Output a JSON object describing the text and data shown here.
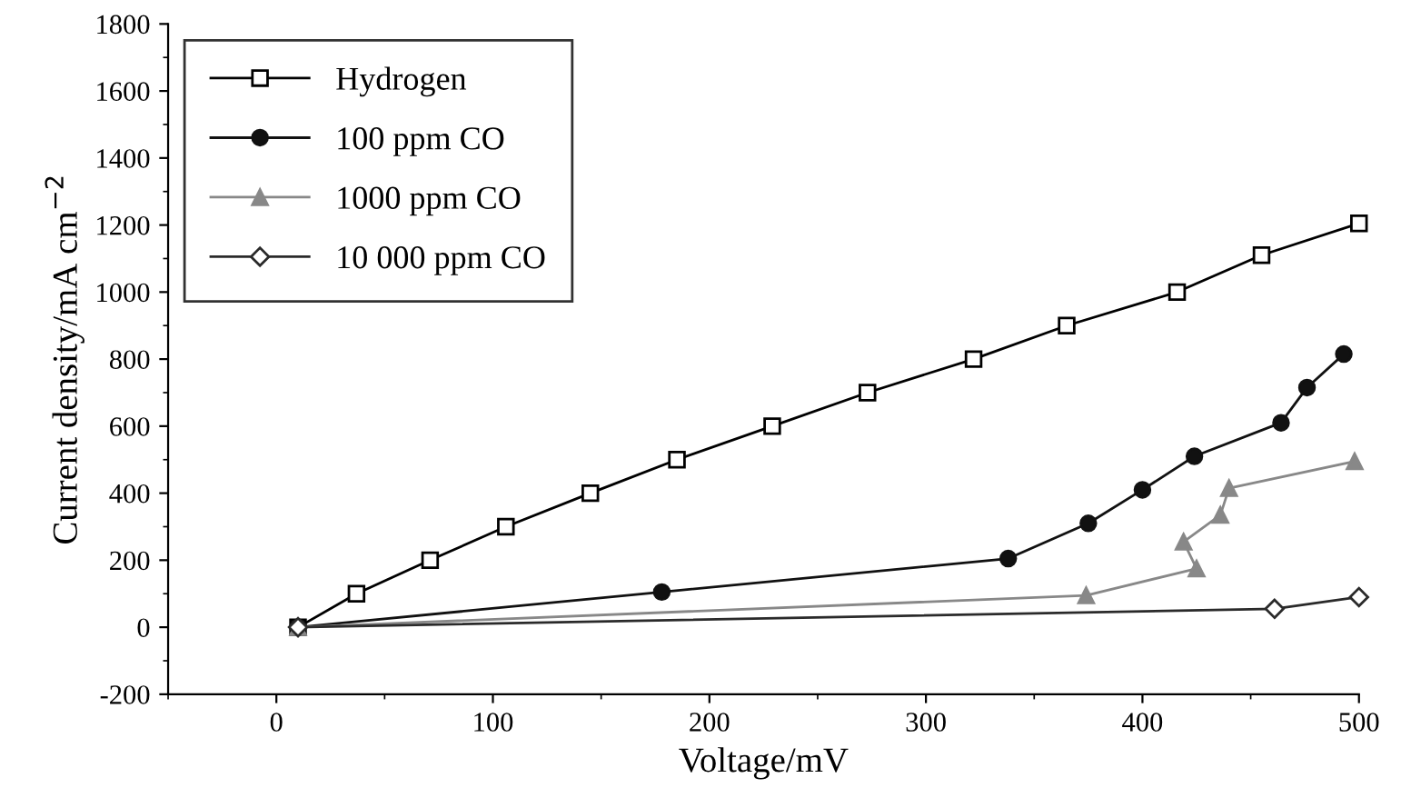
{
  "chart_data": {
    "type": "line",
    "xlabel": "Voltage/mV",
    "ylabel": "Current density/mA cm$^{−2}$",
    "xlim": [
      -50,
      500
    ],
    "xticks": [
      0,
      100,
      200,
      300,
      400,
      500
    ],
    "ylim": [
      -200,
      1800
    ],
    "yticks": [
      -200,
      0,
      200,
      400,
      600,
      800,
      1000,
      1200,
      1400,
      1600,
      1800
    ],
    "grid": false,
    "legend": "top left",
    "line_style": "solid",
    "series": [
      {
        "name": "Hydrogen",
        "color": "#000000",
        "marker": "square",
        "x": [
          10,
          37,
          71,
          106,
          145,
          185,
          229,
          273,
          322,
          365,
          416,
          455,
          500
        ],
        "values": [
          0,
          100,
          200,
          300,
          400,
          500,
          600,
          700,
          800,
          900,
          1000,
          1110,
          1205
        ]
      },
      {
        "name": "100 ppm CO",
        "color": "#111111",
        "marker": "circle",
        "x": [
          10,
          178,
          338,
          375,
          400,
          424,
          464,
          476,
          493
        ],
        "values": [
          0,
          105,
          205,
          310,
          410,
          510,
          610,
          715,
          815
        ]
      },
      {
        "name": "1000 ppm CO",
        "color": "#888888",
        "marker": "triangle",
        "x": [
          10,
          374,
          425,
          419,
          436,
          440,
          498
        ],
        "values": [
          0,
          95,
          175,
          255,
          335,
          415,
          495
        ]
      },
      {
        "name": "10 000 ppm CO",
        "color": "#2a2a2a",
        "marker": "diamond",
        "x": [
          10,
          461,
          500
        ],
        "values": [
          0,
          55,
          90
        ]
      }
    ]
  }
}
